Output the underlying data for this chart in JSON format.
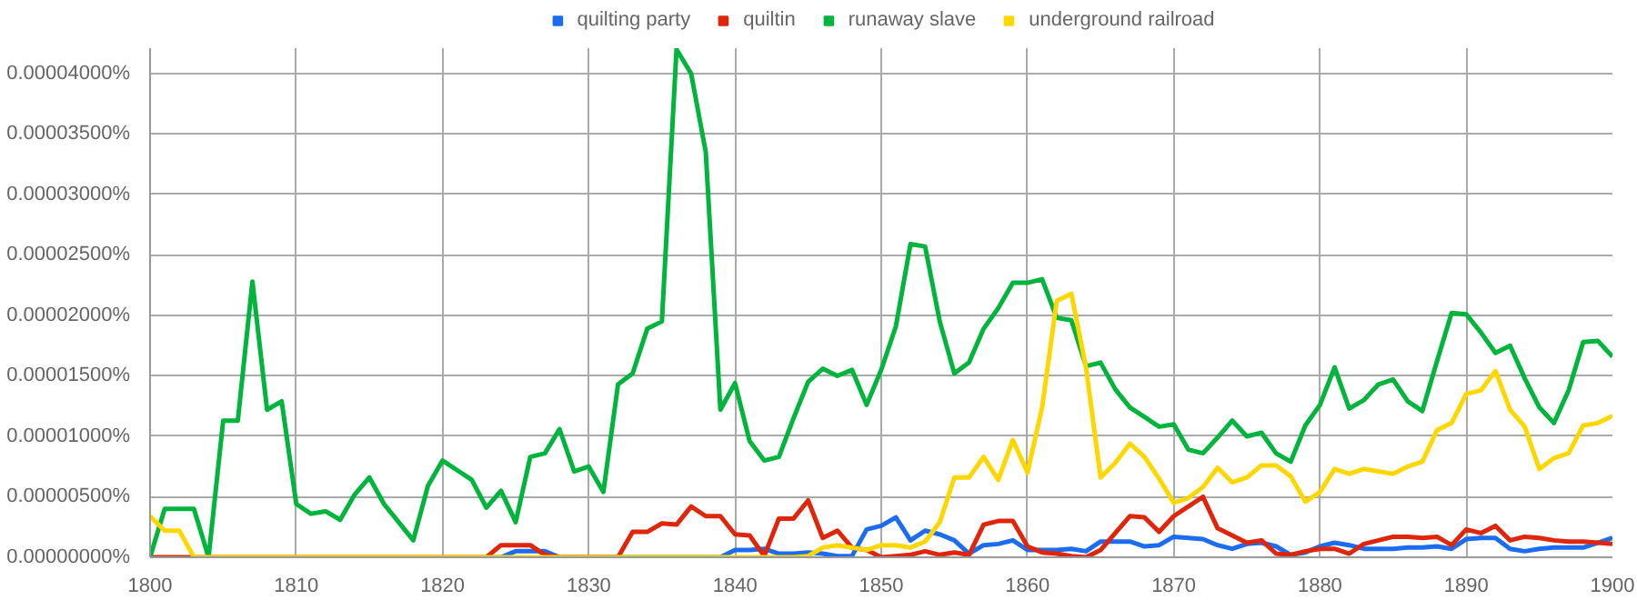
{
  "chart_data": {
    "type": "line",
    "x": [
      1800,
      1801,
      1802,
      1803,
      1804,
      1805,
      1806,
      1807,
      1808,
      1809,
      1810,
      1811,
      1812,
      1813,
      1814,
      1815,
      1816,
      1817,
      1818,
      1819,
      1820,
      1821,
      1822,
      1823,
      1824,
      1825,
      1826,
      1827,
      1828,
      1829,
      1830,
      1831,
      1832,
      1833,
      1834,
      1835,
      1836,
      1837,
      1838,
      1839,
      1840,
      1841,
      1842,
      1843,
      1844,
      1845,
      1846,
      1847,
      1848,
      1849,
      1850,
      1851,
      1852,
      1853,
      1854,
      1855,
      1856,
      1857,
      1858,
      1859,
      1860,
      1861,
      1862,
      1863,
      1864,
      1865,
      1866,
      1867,
      1868,
      1869,
      1870,
      1871,
      1872,
      1873,
      1874,
      1875,
      1876,
      1877,
      1878,
      1879,
      1880,
      1881,
      1882,
      1883,
      1884,
      1885,
      1886,
      1887,
      1888,
      1889,
      1890,
      1891,
      1892,
      1893,
      1894,
      1895,
      1896,
      1897,
      1898,
      1899,
      1900
    ],
    "series": [
      {
        "name": "quilting party",
        "color": "#1c6cf0",
        "values": [
          null,
          null,
          null,
          null,
          null,
          null,
          null,
          null,
          null,
          null,
          null,
          null,
          null,
          null,
          null,
          null,
          null,
          null,
          null,
          null,
          null,
          null,
          null,
          0,
          0,
          5e-07,
          5e-07,
          5e-07,
          0,
          0,
          0,
          0,
          0,
          0,
          0,
          0,
          0,
          0,
          0,
          0,
          6e-07,
          6e-07,
          7e-07,
          3e-07,
          3e-07,
          4e-07,
          3e-07,
          1e-07,
          1e-07,
          2.3e-06,
          2.6e-06,
          3.3e-06,
          1.4e-06,
          2.2e-06,
          1.9e-06,
          1.4e-06,
          3e-07,
          1e-06,
          1.1e-06,
          1.4e-06,
          6e-07,
          6e-07,
          6e-07,
          7e-07,
          5e-07,
          1.3e-06,
          1.3e-06,
          1.3e-06,
          9e-07,
          1e-06,
          1.7e-06,
          1.6e-06,
          1.5e-06,
          1e-06,
          7e-07,
          1.1e-06,
          1.2e-06,
          9e-07,
          2e-07,
          4e-07,
          9e-07,
          1.2e-06,
          1e-06,
          7e-07,
          7e-07,
          7e-07,
          8e-07,
          8e-07,
          9e-07,
          7e-07,
          1.5e-06,
          1.6e-06,
          1.6e-06,
          7e-07,
          5e-07,
          7e-07,
          8e-07,
          8e-07,
          8e-07,
          1.2e-06,
          1.6e-06
        ]
      },
      {
        "name": "quiltin",
        "color": "#e0260a",
        "values": [
          0,
          0,
          0,
          0,
          0,
          0,
          0,
          0,
          0,
          0,
          0,
          0,
          0,
          0,
          0,
          0,
          0,
          0,
          0,
          0,
          0,
          0,
          0,
          0,
          1e-06,
          1e-06,
          1e-06,
          2e-07,
          0,
          0,
          0,
          0,
          0,
          2.1e-06,
          2.1e-06,
          2.8e-06,
          2.7e-06,
          4.2e-06,
          3.4e-06,
          3.4e-06,
          1.9e-06,
          1.8e-06,
          1e-07,
          3.2e-06,
          3.2e-06,
          4.7e-06,
          1.6e-06,
          2.2e-06,
          8e-07,
          6e-07,
          0,
          1e-07,
          2e-07,
          5e-07,
          2e-07,
          4e-07,
          2e-07,
          2.7e-06,
          3e-06,
          3e-06,
          9e-07,
          4e-07,
          3e-07,
          1e-07,
          0,
          6e-07,
          2e-06,
          3.4e-06,
          3.3e-06,
          2.1e-06,
          3.4e-06,
          4.2e-06,
          5e-06,
          2.4e-06,
          1.8e-06,
          1.2e-06,
          1.4e-06,
          3e-07,
          2e-07,
          5e-07,
          7e-07,
          7e-07,
          3e-07,
          1.1e-06,
          1.4e-06,
          1.7e-06,
          1.7e-06,
          1.6e-06,
          1.7e-06,
          1e-06,
          2.3e-06,
          2e-06,
          2.6e-06,
          1.4e-06,
          1.7e-06,
          1.6e-06,
          1.4e-06,
          1.3e-06,
          1.3e-06,
          1.2e-06,
          1.1e-06
        ]
      },
      {
        "name": "runaway slave",
        "color": "#00b43c",
        "values": [
          0,
          4e-06,
          4e-06,
          4e-06,
          0,
          1.13e-05,
          1.13e-05,
          2.28e-05,
          1.22e-05,
          1.29e-05,
          4.4e-06,
          3.6e-06,
          3.8e-06,
          3.1e-06,
          5.2e-06,
          6.6e-06,
          4.4e-06,
          2.9e-06,
          1.4e-06,
          5.9e-06,
          8e-06,
          7.2e-06,
          6.4e-06,
          4.1e-06,
          5.5e-06,
          2.9e-06,
          8.3e-06,
          8.6e-06,
          1.06e-05,
          7.1e-06,
          7.5e-06,
          5.4e-06,
          1.43e-05,
          1.52e-05,
          1.89e-05,
          1.95e-05,
          4.2e-05,
          4e-05,
          3.35e-05,
          1.22e-05,
          1.44e-05,
          9.6e-06,
          8e-06,
          8.3e-06,
          1.15e-05,
          1.45e-05,
          1.56e-05,
          1.5e-05,
          1.55e-05,
          1.26e-05,
          1.55e-05,
          1.91e-05,
          2.59e-05,
          2.57e-05,
          1.95e-05,
          1.52e-05,
          1.61e-05,
          1.89e-05,
          2.06e-05,
          2.27e-05,
          2.27e-05,
          2.3e-05,
          1.98e-05,
          1.96e-05,
          1.58e-05,
          1.61e-05,
          1.39e-05,
          1.24e-05,
          1.16e-05,
          1.08e-05,
          1.1e-05,
          8.9e-06,
          8.6e-06,
          9.9e-06,
          1.13e-05,
          1e-05,
          1.03e-05,
          8.6e-06,
          7.9e-06,
          1.09e-05,
          1.26e-05,
          1.57e-05,
          1.23e-05,
          1.3e-05,
          1.43e-05,
          1.47e-05,
          1.29e-05,
          1.21e-05,
          1.62e-05,
          2.02e-05,
          2.01e-05,
          1.86e-05,
          1.69e-05,
          1.75e-05,
          1.48e-05,
          1.24e-05,
          1.11e-05,
          1.38e-05,
          1.78e-05,
          1.79e-05,
          1.66e-05
        ]
      },
      {
        "name": "underground railroad",
        "color": "#ffd700",
        "values": [
          3.4e-06,
          2.2e-06,
          2.2e-06,
          0,
          0,
          0,
          0,
          0,
          0,
          0,
          0,
          0,
          0,
          0,
          0,
          0,
          0,
          0,
          0,
          0,
          0,
          0,
          0,
          0,
          0,
          0,
          0,
          0,
          0,
          0,
          0,
          0,
          0,
          0,
          0,
          0,
          0,
          0,
          0,
          0,
          0,
          0,
          0,
          0,
          0,
          1e-07,
          8e-07,
          1e-06,
          8e-07,
          6e-07,
          1e-06,
          1e-06,
          8e-07,
          1.3e-06,
          2.9e-06,
          6.6e-06,
          6.6e-06,
          8.3e-06,
          6.4e-06,
          9.7e-06,
          7e-06,
          1.24e-05,
          2.12e-05,
          2.18e-05,
          1.57e-05,
          6.6e-06,
          7.8e-06,
          9.4e-06,
          8.3e-06,
          6.5e-06,
          4.5e-06,
          4.9e-06,
          5.8e-06,
          7.4e-06,
          6.2e-06,
          6.6e-06,
          7.6e-06,
          7.6e-06,
          6.7e-06,
          4.6e-06,
          5.4e-06,
          7.3e-06,
          6.9e-06,
          7.3e-06,
          7.1e-06,
          6.9e-06,
          7.5e-06,
          7.9e-06,
          1.05e-05,
          1.11e-05,
          1.35e-05,
          1.38e-05,
          1.54e-05,
          1.22e-05,
          1.08e-05,
          7.3e-06,
          8.2e-06,
          8.6e-06,
          1.09e-05,
          1.11e-05,
          1.17e-05
        ]
      }
    ],
    "xlim": [
      1800,
      1900
    ],
    "xticks": [
      1800,
      1810,
      1820,
      1830,
      1840,
      1850,
      1860,
      1870,
      1880,
      1890,
      1900
    ],
    "ylim": [
      0,
      4.21e-05
    ],
    "yticks": [
      {
        "value": 0,
        "label": "0.00000000%"
      },
      {
        "value": 5e-06,
        "label": "0.00000500%"
      },
      {
        "value": 1e-05,
        "label": "0.00001000%"
      },
      {
        "value": 1.5e-05,
        "label": "0.00001500%"
      },
      {
        "value": 2e-05,
        "label": "0.00002000%"
      },
      {
        "value": 2.5e-05,
        "label": "0.00002500%"
      },
      {
        "value": 3e-05,
        "label": "0.00003000%"
      },
      {
        "value": 3.5e-05,
        "label": "0.00003500%"
      },
      {
        "value": 4e-05,
        "label": "0.00004000%"
      }
    ],
    "grid": true,
    "legend": "top",
    "marker": "none",
    "line_style": "solid"
  }
}
